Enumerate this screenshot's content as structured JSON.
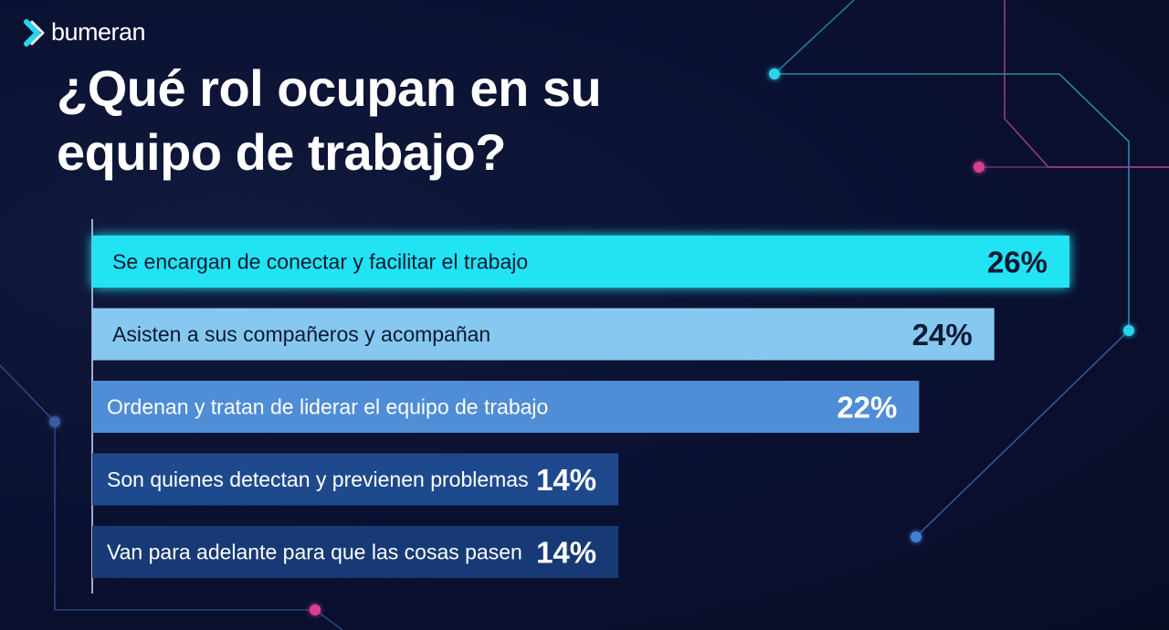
{
  "brand": {
    "name": "bumeran",
    "accent_color": "#2ad4ea"
  },
  "chart_data": {
    "type": "bar",
    "orientation": "horizontal",
    "title": "¿Qué rol ocupan en su equipo de trabajo?",
    "categories": [
      "Se encargan de conectar y facilitar el trabajo",
      "Asisten a sus compañeros y acompañan",
      "Ordenan y tratan de liderar el equipo de trabajo",
      "Son quienes detectan y previenen problemas",
      "Van para adelante para que las cosas pasen"
    ],
    "values": [
      26,
      24,
      22,
      14,
      14
    ],
    "value_labels": [
      "26%",
      "24%",
      "22%",
      "14%",
      "14%"
    ],
    "unit": "%",
    "xlim": [
      0,
      26
    ],
    "bar_colors": [
      "#22e3f3",
      "#86c8f0",
      "#4f8dd6",
      "#1e4a8d",
      "#173a76"
    ],
    "label_colors": [
      "#0c1a33",
      "#0c1a33",
      "#ffffff",
      "#ffffff",
      "#ffffff"
    ],
    "grid": false,
    "legend": "none"
  }
}
